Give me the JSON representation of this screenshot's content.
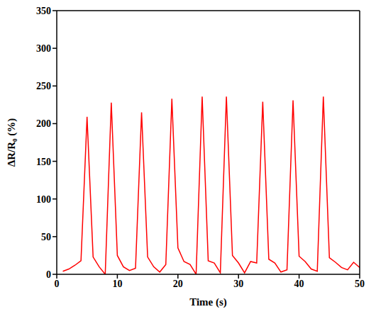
{
  "chart_data": {
    "type": "line",
    "xlabel": "Time (s)",
    "ylabel": "ΔR/R₀ (%)",
    "x": [
      1,
      2,
      3,
      4,
      5,
      6,
      7,
      8,
      9,
      10,
      11,
      12,
      13,
      14,
      15,
      16,
      17,
      18,
      19,
      20,
      21,
      22,
      23,
      24,
      25,
      26,
      27,
      28,
      29,
      30,
      31,
      32,
      33,
      34,
      35,
      36,
      37,
      38,
      39,
      40,
      41,
      42,
      43,
      44,
      45,
      46,
      47,
      48,
      49,
      50
    ],
    "values": [
      4,
      7,
      12,
      18,
      209,
      23,
      10,
      0,
      228,
      25,
      10,
      5,
      8,
      215,
      23,
      10,
      3,
      13,
      233,
      35,
      17,
      13,
      0,
      236,
      18,
      15,
      2,
      236,
      25,
      15,
      2,
      17,
      15,
      229,
      20,
      15,
      3,
      6,
      231,
      24,
      17,
      7,
      4,
      236,
      22,
      16,
      9,
      6,
      16,
      9
    ],
    "color": "#ff0000",
    "xlim": [
      0,
      50
    ],
    "ylim": [
      0,
      350
    ],
    "xticks": [
      0,
      10,
      20,
      30,
      40,
      50
    ],
    "yticks": [
      0,
      50,
      100,
      150,
      200,
      250,
      300,
      350
    ],
    "grid": false
  }
}
